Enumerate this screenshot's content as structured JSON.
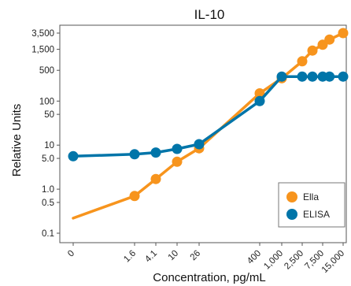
{
  "chart_data": {
    "type": "line",
    "title": "IL-10",
    "xlabel": "Concentration, pg/mL",
    "ylabel": "Relative Units",
    "y_scale": "log",
    "yticks": [
      "0.1",
      "0.5",
      "1.0",
      "5.0",
      "10",
      "50",
      "100",
      "500",
      "1,500",
      "3,500"
    ],
    "ytick_values": [
      0.1,
      0.5,
      1.0,
      5.0,
      10,
      50,
      100,
      500,
      1500,
      3500
    ],
    "xticks": [
      "0",
      "1.6",
      "4.1",
      "10",
      "26",
      "400",
      "1,000",
      "2,500",
      "7,500",
      "15,000"
    ],
    "xtick_values": [
      0,
      1.6,
      4.1,
      10,
      26,
      400,
      1000,
      2500,
      7500,
      15000
    ],
    "grid": false,
    "legend_position": "bottom-right",
    "series": [
      {
        "name": "Ella",
        "color": "#F7941D",
        "points": [
          {
            "x": 0,
            "y": 0.22,
            "marker": false
          },
          {
            "x": 1.6,
            "y": 0.7,
            "marker": true
          },
          {
            "x": 4.1,
            "y": 1.7,
            "marker": true
          },
          {
            "x": 10,
            "y": 4.2,
            "marker": true
          },
          {
            "x": 26,
            "y": 8.5,
            "marker": true
          },
          {
            "x": 400,
            "y": 150,
            "marker": true
          },
          {
            "x": 1000,
            "y": 330,
            "marker": true
          },
          {
            "x": 2500,
            "y": 800,
            "marker": true
          },
          {
            "x": 5000,
            "y": 1400,
            "marker": true
          },
          {
            "x": 7500,
            "y": 1900,
            "marker": true
          },
          {
            "x": 10000,
            "y": 2500,
            "marker": true
          },
          {
            "x": 15000,
            "y": 3500,
            "marker": true
          }
        ]
      },
      {
        "name": "ELISA",
        "color": "#0075A9",
        "points": [
          {
            "x": 0,
            "y": 5.6,
            "marker": true
          },
          {
            "x": 1.6,
            "y": 6.2,
            "marker": true
          },
          {
            "x": 4.1,
            "y": 6.8,
            "marker": true
          },
          {
            "x": 10,
            "y": 8.2,
            "marker": true
          },
          {
            "x": 26,
            "y": 10.5,
            "marker": true
          },
          {
            "x": 400,
            "y": 100,
            "marker": true
          },
          {
            "x": 1000,
            "y": 360,
            "marker": true
          },
          {
            "x": 2500,
            "y": 360,
            "marker": true
          },
          {
            "x": 5000,
            "y": 360,
            "marker": true
          },
          {
            "x": 7500,
            "y": 360,
            "marker": true
          },
          {
            "x": 10000,
            "y": 360,
            "marker": true
          },
          {
            "x": 15000,
            "y": 360,
            "marker": true
          }
        ]
      }
    ]
  }
}
